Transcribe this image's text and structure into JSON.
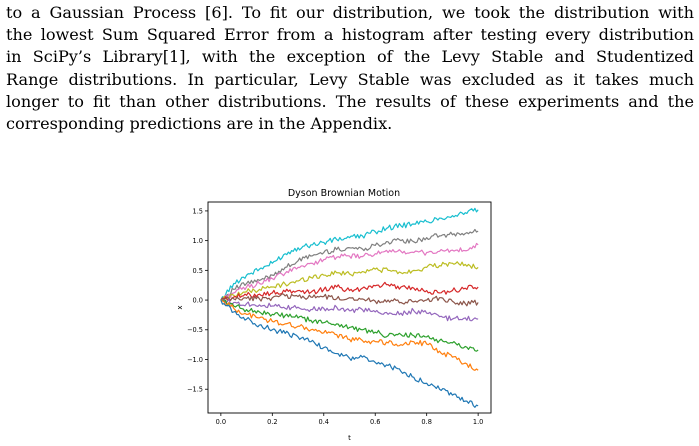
{
  "paragraph": {
    "lines": [
      "to a Gaussian Process [6]. To fit our distribution, we took the distribution with",
      "the lowest Sum Squared Error from a histogram after testing every distribution",
      "in SciPy’s Library[1], with the exception of the Levy Stable and Studentized",
      "Range distributions. In particular, Levy Stable was excluded as it takes much",
      "longer to fit than other distributions. The results of these experiments and the",
      "corresponding predictions are in the Appendix."
    ]
  },
  "chart_data": {
    "type": "line",
    "title": "Dyson Brownian Motion",
    "xlabel": "t",
    "ylabel": "x",
    "xlim": [
      -0.05,
      1.05
    ],
    "ylim": [
      -1.9,
      1.65
    ],
    "xticks": [
      0.0,
      0.2,
      0.4,
      0.6,
      0.8,
      1.0
    ],
    "xtick_labels": [
      "0.0",
      "0.2",
      "0.4",
      "0.6",
      "0.8",
      "1.0"
    ],
    "yticks": [
      1.5,
      1.0,
      0.5,
      0.0,
      -0.5,
      -1.0,
      -1.5
    ],
    "ytick_labels": [
      "1.5",
      "1.0",
      "0.5",
      "0.0",
      "−0.5",
      "−1.0",
      "−1.5"
    ],
    "grid": false,
    "legend": "none",
    "x": [
      0.0,
      0.05,
      0.1,
      0.15,
      0.2,
      0.25,
      0.3,
      0.35,
      0.4,
      0.45,
      0.5,
      0.55,
      0.6,
      0.65,
      0.7,
      0.75,
      0.8,
      0.85,
      0.9,
      0.95,
      1.0
    ],
    "series": [
      {
        "color": "#17becf",
        "values": [
          0.0,
          0.28,
          0.42,
          0.52,
          0.62,
          0.78,
          0.88,
          0.93,
          0.97,
          1.02,
          1.05,
          1.08,
          1.15,
          1.22,
          1.25,
          1.28,
          1.32,
          1.38,
          1.42,
          1.47,
          1.52
        ]
      },
      {
        "color": "#7f7f7f",
        "values": [
          0.0,
          0.18,
          0.28,
          0.33,
          0.42,
          0.55,
          0.66,
          0.74,
          0.8,
          0.85,
          0.88,
          0.86,
          0.92,
          0.98,
          1.0,
          0.98,
          1.05,
          1.08,
          1.1,
          1.12,
          1.16
        ]
      },
      {
        "color": "#e377c2",
        "values": [
          0.0,
          0.12,
          0.22,
          0.28,
          0.36,
          0.45,
          0.55,
          0.62,
          0.68,
          0.72,
          0.74,
          0.73,
          0.78,
          0.8,
          0.82,
          0.8,
          0.8,
          0.82,
          0.84,
          0.83,
          0.93
        ]
      },
      {
        "color": "#bcbd22",
        "values": [
          0.0,
          0.08,
          0.14,
          0.18,
          0.22,
          0.27,
          0.32,
          0.38,
          0.42,
          0.46,
          0.44,
          0.48,
          0.52,
          0.5,
          0.46,
          0.5,
          0.55,
          0.58,
          0.62,
          0.6,
          0.55
        ]
      },
      {
        "color": "#d62728",
        "values": [
          0.0,
          0.05,
          0.08,
          0.1,
          0.12,
          0.14,
          0.16,
          0.13,
          0.18,
          0.22,
          0.16,
          0.2,
          0.24,
          0.26,
          0.22,
          0.2,
          0.16,
          0.12,
          0.16,
          0.2,
          0.22
        ]
      },
      {
        "color": "#8c564b",
        "values": [
          0.0,
          0.02,
          0.03,
          0.02,
          0.04,
          0.07,
          0.06,
          0.05,
          0.06,
          0.02,
          0.04,
          0.02,
          -0.02,
          0.0,
          -0.04,
          -0.03,
          0.0,
          0.04,
          -0.02,
          -0.06,
          -0.04
        ]
      },
      {
        "color": "#9467bd",
        "values": [
          0.0,
          -0.04,
          -0.06,
          -0.08,
          -0.1,
          -0.14,
          -0.12,
          -0.16,
          -0.14,
          -0.12,
          -0.18,
          -0.16,
          -0.2,
          -0.24,
          -0.22,
          -0.18,
          -0.22,
          -0.28,
          -0.32,
          -0.3,
          -0.32
        ]
      },
      {
        "color": "#2ca02c",
        "values": [
          0.0,
          -0.1,
          -0.16,
          -0.2,
          -0.24,
          -0.26,
          -0.3,
          -0.34,
          -0.38,
          -0.4,
          -0.46,
          -0.5,
          -0.54,
          -0.6,
          -0.58,
          -0.6,
          -0.62,
          -0.68,
          -0.72,
          -0.78,
          -0.84
        ]
      },
      {
        "color": "#ff7f0e",
        "values": [
          0.0,
          -0.14,
          -0.24,
          -0.3,
          -0.36,
          -0.4,
          -0.44,
          -0.5,
          -0.55,
          -0.58,
          -0.66,
          -0.68,
          -0.7,
          -0.72,
          -0.75,
          -0.7,
          -0.74,
          -0.86,
          -0.96,
          -1.06,
          -1.18
        ]
      },
      {
        "color": "#1f77b4",
        "values": [
          0.0,
          -0.2,
          -0.32,
          -0.42,
          -0.5,
          -0.56,
          -0.62,
          -0.7,
          -0.8,
          -0.9,
          -0.98,
          -0.96,
          -1.05,
          -1.1,
          -1.2,
          -1.3,
          -1.4,
          -1.5,
          -1.6,
          -1.7,
          -1.78
        ]
      }
    ]
  }
}
